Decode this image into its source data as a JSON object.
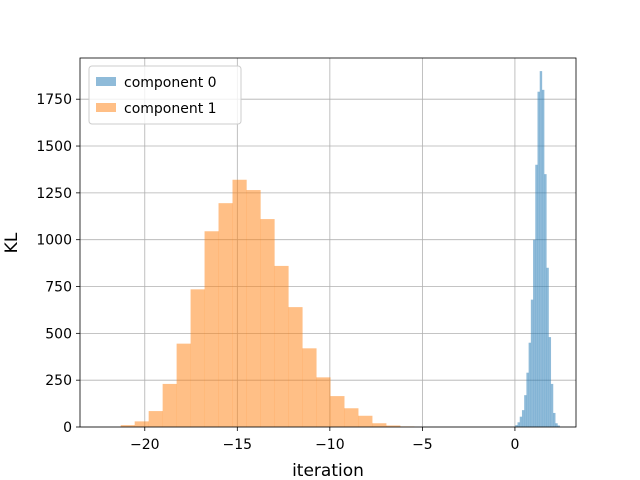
{
  "chart_data": {
    "type": "histogram",
    "title": "",
    "xlabel": "iteration",
    "ylabel": "KL",
    "xlim": [
      -23.5,
      3.3
    ],
    "ylim": [
      0,
      1970
    ],
    "xticks": [
      -20,
      -15,
      -10,
      -5,
      0
    ],
    "xtick_labels": [
      "−20",
      "−15",
      "−10",
      "−5",
      "0"
    ],
    "yticks": [
      0,
      250,
      500,
      750,
      1000,
      1250,
      1500,
      1750
    ],
    "ytick_labels": [
      "0",
      "250",
      "500",
      "750",
      "1000",
      "1250",
      "1500",
      "1750"
    ],
    "grid": true,
    "legend_position": "upper-left",
    "series": [
      {
        "name": "component 0",
        "color": "#1f77b4",
        "alpha": 0.5,
        "bin_start": 0.02,
        "bin_width": 0.12,
        "counts": [
          10,
          25,
          55,
          90,
          170,
          290,
          450,
          680,
          1000,
          1400,
          1790,
          1900,
          1800,
          1350,
          850,
          480,
          230,
          75,
          20,
          8
        ]
      },
      {
        "name": "component 1",
        "color": "#ff7f0e",
        "alpha": 0.5,
        "bin_start": -21.3,
        "bin_width": 0.755,
        "counts": [
          10,
          30,
          85,
          230,
          445,
          735,
          1045,
          1195,
          1320,
          1265,
          1110,
          860,
          640,
          420,
          265,
          165,
          100,
          60,
          20,
          8,
          3
        ]
      }
    ]
  }
}
